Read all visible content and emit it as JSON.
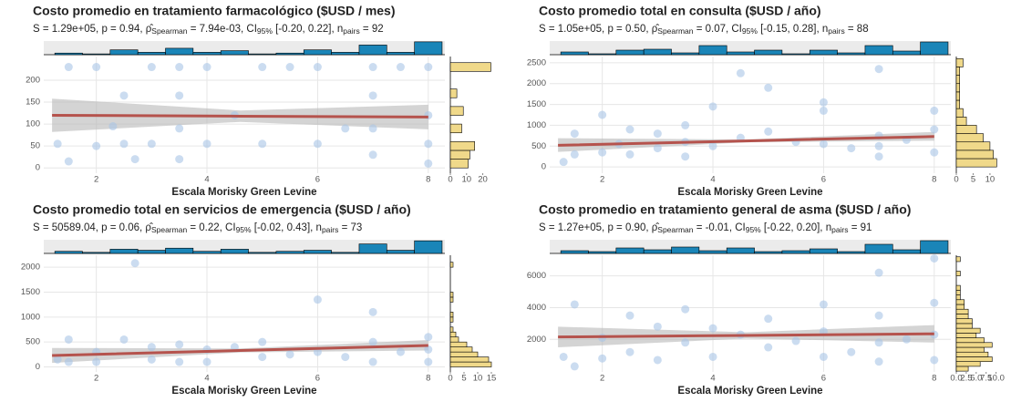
{
  "chart_data": [
    {
      "type": "scatter",
      "title": "Costo promedio en tratamiento farmacológico ($USD / mes)",
      "subtitle_parts": [
        "S = 1.29e+05, p = 0.94, ρ̂",
        "Spearman",
        " = 7.94e-03, CI",
        "95%",
        " [-0.20, 0.22], n",
        "pairs",
        " = 92"
      ],
      "x_label": "Escala Morisky Green Levine",
      "xlim": [
        1.05,
        8.3
      ],
      "xticks": [
        2,
        4,
        6,
        8
      ],
      "ylim": [
        -12,
        254
      ],
      "yticks": [
        0,
        50,
        100,
        150,
        200
      ],
      "grid": true,
      "color": "#a9c4e6",
      "x": [
        1.3,
        1.5,
        1.5,
        2,
        2,
        2.3,
        2.5,
        2.5,
        2.7,
        3,
        3,
        3.5,
        3.5,
        3.5,
        3.5,
        4,
        4,
        4.5,
        5,
        5,
        5.5,
        6,
        6,
        6.5,
        7,
        7,
        7,
        7,
        7.5,
        8,
        8,
        8,
        8
      ],
      "y": [
        55,
        230,
        15,
        230,
        50,
        95,
        165,
        55,
        20,
        230,
        55,
        230,
        165,
        90,
        20,
        230,
        55,
        120,
        230,
        55,
        230,
        230,
        55,
        90,
        230,
        165,
        90,
        30,
        230,
        230,
        120,
        55,
        10
      ],
      "fit": {
        "color": "#b5534d",
        "band_color": "#b8b8b8",
        "x": [
          1.2,
          4.6,
          8
        ],
        "y": [
          120,
          118,
          116
        ],
        "lower": [
          82,
          105,
          88
        ],
        "upper": [
          158,
          131,
          144
        ]
      },
      "top_hist": {
        "color": "#1a85b8",
        "bins": [
          1.25,
          1.75,
          2.25,
          2.75,
          3.25,
          3.75,
          4.25,
          4.75,
          5.25,
          5.75,
          6.25,
          6.75,
          7.25,
          7.75,
          8.25
        ],
        "counts": [
          2,
          1,
          6,
          3,
          8,
          3,
          5,
          1,
          2,
          6,
          3,
          12,
          3,
          16
        ],
        "ylim": [
          0,
          17
        ]
      },
      "right_hist": {
        "color": "#f0d98a",
        "bins": [
          0,
          20,
          40,
          60,
          80,
          100,
          120,
          140,
          160,
          180,
          200,
          220,
          240
        ],
        "counts": [
          11,
          12,
          15,
          0,
          7,
          0,
          8,
          0,
          4,
          0,
          0,
          25
        ],
        "xlim": [
          0,
          27
        ],
        "xticks": [
          0,
          10,
          20
        ]
      }
    },
    {
      "type": "scatter",
      "title": "Costo promedio total en consulta ($USD / año)",
      "subtitle_parts": [
        "S = 1.05e+05, p = 0.50, ρ̂",
        "Spearman",
        " = 0.07, CI",
        "95%",
        " [-0.15, 0.28], n",
        "pairs",
        " = 88"
      ],
      "x_label": "Escala Morisky Green Levine",
      "xlim": [
        1.05,
        8.3
      ],
      "xticks": [
        2,
        4,
        6,
        8
      ],
      "ylim": [
        -150,
        2650
      ],
      "yticks": [
        0,
        500,
        1000,
        1500,
        2000,
        2500
      ],
      "grid": true,
      "color": "#a9c4e6",
      "x": [
        1.3,
        1.5,
        1.5,
        2,
        2,
        2.3,
        2.5,
        2.5,
        3,
        3,
        3.5,
        3.5,
        3.5,
        4,
        4,
        4.5,
        4.5,
        5,
        5,
        5.5,
        6,
        6,
        6,
        6.5,
        7,
        7,
        7,
        7,
        7.5,
        8,
        8,
        8
      ],
      "y": [
        120,
        800,
        300,
        1250,
        350,
        550,
        900,
        300,
        800,
        450,
        1000,
        600,
        250,
        1450,
        500,
        2250,
        700,
        1900,
        850,
        600,
        1550,
        1350,
        550,
        450,
        2350,
        750,
        500,
        250,
        650,
        1350,
        900,
        350
      ],
      "fit": {
        "color": "#b5534d",
        "band_color": "#b8b8b8",
        "x": [
          1.2,
          4.6,
          8
        ],
        "y": [
          520,
          625,
          730
        ],
        "lower": [
          360,
          590,
          630
        ],
        "upper": [
          690,
          660,
          840
        ]
      },
      "top_hist": {
        "color": "#1a85b8",
        "bins": [
          1.25,
          1.75,
          2.25,
          2.75,
          3.25,
          3.75,
          4.25,
          4.75,
          5.25,
          5.75,
          6.25,
          6.75,
          7.25,
          7.75,
          8.25
        ],
        "counts": [
          3,
          1,
          5,
          6,
          2,
          10,
          3,
          5,
          1,
          5,
          2,
          10,
          4,
          14
        ],
        "ylim": [
          0,
          15
        ]
      },
      "right_hist": {
        "color": "#f0d98a",
        "bins": [
          0,
          200,
          400,
          600,
          800,
          1000,
          1200,
          1400,
          1600,
          1800,
          2000,
          2200,
          2400,
          2600
        ],
        "counts": [
          12,
          11,
          10,
          8,
          6,
          3,
          2,
          1,
          1,
          1,
          1,
          1,
          2
        ],
        "xlim": [
          0,
          13
        ],
        "xticks": [
          0,
          5,
          10
        ]
      }
    },
    {
      "type": "scatter",
      "title": "Costo promedio total en servicios de emergencia ($USD / año)",
      "subtitle_parts": [
        "S = 50589.04, p = 0.06, ρ̂",
        "Spearman",
        " = 0.22, CI",
        "95%",
        " [-0.02, 0.43], n",
        "pairs",
        " = 73"
      ],
      "x_label": "Escala Morisky Green Levine",
      "xlim": [
        1.05,
        8.3
      ],
      "xticks": [
        2,
        4,
        6,
        8
      ],
      "ylim": [
        -100,
        2240
      ],
      "yticks": [
        0,
        500,
        1000,
        1500,
        2000
      ],
      "grid": true,
      "color": "#a9c4e6",
      "x": [
        1.3,
        1.5,
        1.5,
        2,
        2,
        2.5,
        2.7,
        3,
        3,
        3.5,
        3.5,
        4,
        4,
        4.5,
        5,
        5,
        5.5,
        6,
        6,
        6.5,
        7,
        7,
        7,
        7.5,
        8,
        8,
        8
      ],
      "y": [
        150,
        550,
        100,
        300,
        100,
        550,
        2080,
        400,
        150,
        450,
        100,
        350,
        100,
        400,
        500,
        200,
        250,
        1350,
        300,
        200,
        1100,
        500,
        100,
        300,
        600,
        350,
        100
      ],
      "fit": {
        "color": "#b5534d",
        "band_color": "#b8b8b8",
        "x": [
          1.2,
          4.6,
          8
        ],
        "y": [
          230,
          330,
          430
        ],
        "lower": [
          80,
          290,
          330
        ],
        "upper": [
          380,
          370,
          540
        ]
      },
      "top_hist": {
        "color": "#1a85b8",
        "bins": [
          1.25,
          1.75,
          2.25,
          2.75,
          3.25,
          3.75,
          4.25,
          4.75,
          5.25,
          5.75,
          6.25,
          6.75,
          7.25,
          7.75,
          8.25
        ],
        "counts": [
          2,
          1,
          4,
          3,
          5,
          2,
          4,
          1,
          2,
          3,
          1,
          9,
          3,
          12
        ],
        "ylim": [
          0,
          13
        ]
      },
      "right_hist": {
        "color": "#f0d98a",
        "bins": [
          0,
          100,
          200,
          300,
          400,
          500,
          600,
          700,
          800,
          900,
          1000,
          1100,
          1200,
          1300,
          1400,
          1500,
          1600,
          1700,
          1800,
          1900,
          2000,
          2100,
          2200
        ],
        "counts": [
          15,
          14,
          10,
          8,
          6,
          3,
          2,
          1,
          0,
          1,
          1,
          0,
          0,
          1,
          1,
          0,
          0,
          0,
          0,
          0,
          1,
          0
        ],
        "xlim": [
          0,
          16
        ],
        "xticks": [
          0,
          5,
          10,
          15
        ]
      }
    },
    {
      "type": "scatter",
      "title": "Costo promedio en tratamiento general de asma ($USD / año)",
      "subtitle_parts": [
        "S = 1.27e+05, p = 0.90, ρ̂",
        "Spearman",
        " = -0.01, CI",
        "95%",
        " [-0.22, 0.20], n",
        "pairs",
        " = 91"
      ],
      "x_label": "Escala Morisky Green Levine",
      "xlim": [
        1.05,
        8.3
      ],
      "xticks": [
        2,
        4,
        6,
        8
      ],
      "ylim": [
        -50,
        7300
      ],
      "yticks": [
        2000,
        4000,
        6000
      ],
      "grid": true,
      "color": "#a9c4e6",
      "x": [
        1.3,
        1.5,
        1.5,
        2,
        2,
        2.5,
        2.5,
        3,
        3,
        3.5,
        3.5,
        4,
        4,
        4.5,
        5,
        5,
        5.5,
        6,
        6,
        6,
        6.5,
        7,
        7,
        7,
        7,
        7.5,
        8,
        8,
        8,
        8
      ],
      "y": [
        900,
        4200,
        300,
        2100,
        800,
        3500,
        1200,
        2800,
        700,
        3900,
        1800,
        2700,
        900,
        2300,
        3300,
        1500,
        1900,
        4200,
        2500,
        900,
        1200,
        6200,
        3500,
        1800,
        600,
        2000,
        7100,
        4300,
        2300,
        700
      ],
      "fit": {
        "color": "#b5534d",
        "band_color": "#b8b8b8",
        "x": [
          1.2,
          4.6,
          8
        ],
        "y": [
          2150,
          2250,
          2350
        ],
        "lower": [
          1500,
          2050,
          1800
        ],
        "upper": [
          2800,
          2450,
          2900
        ]
      },
      "top_hist": {
        "color": "#1a85b8",
        "bins": [
          1.25,
          1.75,
          2.25,
          2.75,
          3.25,
          3.75,
          4.25,
          4.75,
          5.25,
          5.75,
          6.25,
          6.75,
          7.25,
          7.75,
          8.25
        ],
        "counts": [
          3,
          2,
          6,
          4,
          7,
          3,
          6,
          2,
          3,
          5,
          2,
          10,
          4,
          14
        ],
        "ylim": [
          0,
          15
        ]
      },
      "right_hist": {
        "color": "#f0d98a",
        "bins": [
          0,
          300,
          600,
          900,
          1200,
          1500,
          1800,
          2100,
          2400,
          2700,
          3000,
          3300,
          3600,
          3900,
          4200,
          4500,
          4800,
          5100,
          5400,
          5700,
          6000,
          6300,
          6600,
          6900,
          7200
        ],
        "counts": [
          3,
          6,
          9,
          8,
          7,
          9,
          7,
          5,
          6,
          4,
          4,
          3,
          3,
          2,
          2,
          1,
          1,
          1,
          0,
          0,
          1,
          0,
          0,
          1
        ],
        "xlim": [
          0,
          11
        ],
        "xticks": [
          {
            "value": 0,
            "label": "0.0"
          },
          2.5,
          {
            "value": 5,
            "label": "5.0"
          },
          7.5,
          {
            "value": 10,
            "label": "10.0"
          }
        ]
      }
    }
  ]
}
